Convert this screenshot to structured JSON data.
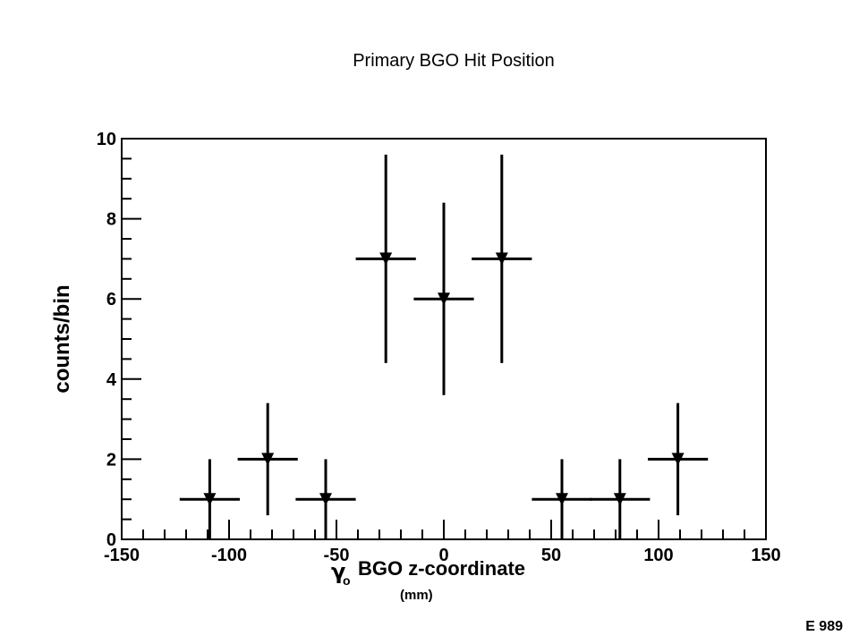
{
  "page": {
    "title": "Primary BGO Hit Position",
    "unit_label": "(mm)",
    "experiment_tag": "E 989"
  },
  "chart_data": {
    "type": "scatter",
    "title": "Primary BGO Hit Position",
    "xlabel_symbol": "γ",
    "xlabel_subscript": "o",
    "xlabel": "BGO z-coordinate",
    "ylabel": "counts/bin",
    "xlim": [
      -150,
      150
    ],
    "ylim": [
      0,
      10
    ],
    "x_ticks": [
      -150,
      -100,
      -50,
      0,
      50,
      100,
      150
    ],
    "y_ticks": [
      0,
      2,
      4,
      6,
      8,
      10
    ],
    "marker": "down-triangle",
    "grid": false,
    "points": [
      {
        "x": -109,
        "y": 1,
        "xerr": 14,
        "ylow": 0,
        "yhigh": 2
      },
      {
        "x": -82,
        "y": 2,
        "xerr": 14,
        "ylow": 0.6,
        "yhigh": 3.4
      },
      {
        "x": -55,
        "y": 1,
        "xerr": 14,
        "ylow": 0,
        "yhigh": 2
      },
      {
        "x": -27,
        "y": 7,
        "xerr": 14,
        "ylow": 4.4,
        "yhigh": 9.6
      },
      {
        "x": 0,
        "y": 6,
        "xerr": 14,
        "ylow": 3.6,
        "yhigh": 8.4
      },
      {
        "x": 27,
        "y": 7,
        "xerr": 14,
        "ylow": 4.4,
        "yhigh": 9.6
      },
      {
        "x": 55,
        "y": 1,
        "xerr": 14,
        "ylow": 0,
        "yhigh": 2
      },
      {
        "x": 82,
        "y": 1,
        "xerr": 14,
        "ylow": 0,
        "yhigh": 2
      },
      {
        "x": 109,
        "y": 2,
        "xerr": 14,
        "ylow": 0.6,
        "yhigh": 3.4
      }
    ]
  }
}
